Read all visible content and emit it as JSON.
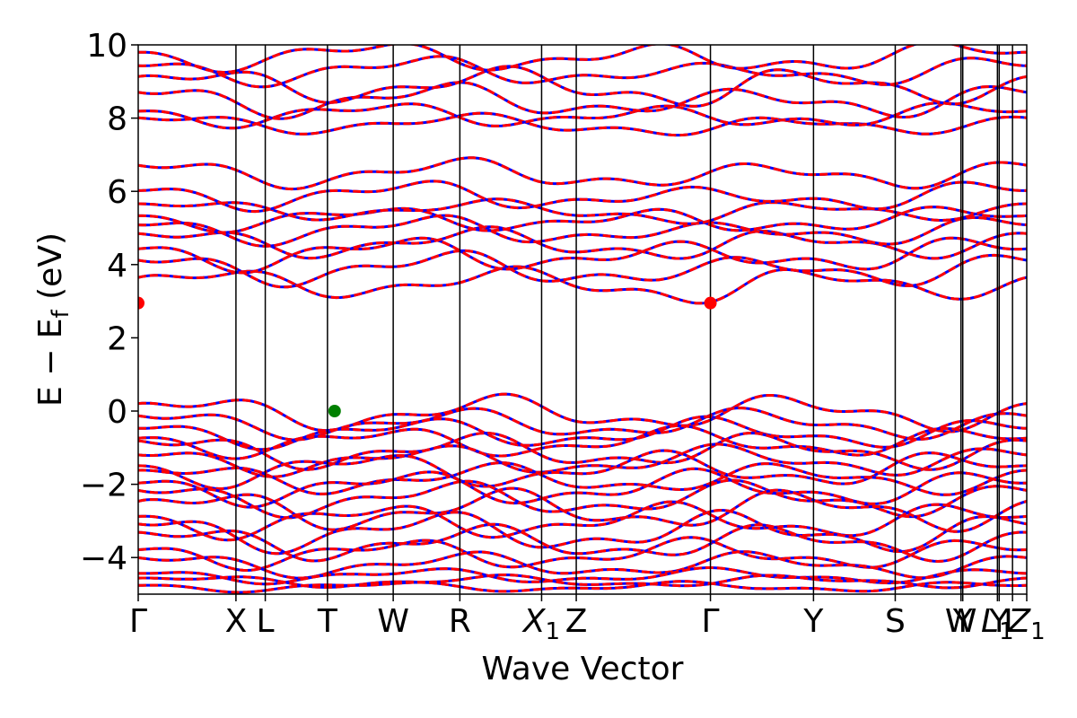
{
  "chart_data": {
    "type": "line",
    "title": "",
    "xlabel": "Wave Vector",
    "ylabel": "E − E_f (eV)",
    "ylabel_parts": {
      "main": "E − E",
      "sub": "f",
      "unit": " (eV)"
    },
    "ylim": [
      -5,
      10
    ],
    "yticks": [
      -4,
      -2,
      0,
      2,
      4,
      6,
      8,
      10
    ],
    "ytick_labels": [
      "−4",
      "−2",
      "0",
      "2",
      "4",
      "6",
      "8",
      "10"
    ],
    "xlim": [
      0,
      1
    ],
    "kpoints": [
      {
        "label": "Γ",
        "x": 0.0
      },
      {
        "label": "X",
        "x": 0.11
      },
      {
        "label": "L",
        "x": 0.143
      },
      {
        "label": "T",
        "x": 0.213
      },
      {
        "label": "W",
        "x": 0.287
      },
      {
        "label": "R",
        "x": 0.362
      },
      {
        "label": "X",
        "sub": "1",
        "x": 0.454
      },
      {
        "label": "Z",
        "x": 0.493
      },
      {
        "label": "Γ",
        "x": 0.644
      },
      {
        "label": "Y",
        "x": 0.76
      },
      {
        "label": "S",
        "x": 0.852
      },
      {
        "label": "W",
        "x": 0.926
      },
      {
        "label": "Y",
        "x": 0.928
      },
      {
        "label": "L",
        "sub": "1",
        "x": 0.967
      },
      {
        "label": "Y",
        "x": 0.969
      },
      {
        "label": "L",
        "x": 0.984
      },
      {
        "label": "Z",
        "sub": "1",
        "x": 1.0
      }
    ],
    "series": [
      {
        "color": "#0000ff",
        "style": "solid"
      },
      {
        "color": "#ff0000",
        "style": "dashed"
      }
    ],
    "band_edges": [
      {
        "kind": "cbm",
        "x": 0.0,
        "energy": 2.95,
        "color": "#ff0000"
      },
      {
        "kind": "cbm",
        "x": 0.644,
        "energy": 2.95,
        "color": "#ff0000"
      },
      {
        "kind": "vbm",
        "x": 0.221,
        "energy": 0.0,
        "color": "#008000"
      }
    ],
    "bands": [
      {
        "kind": "v",
        "base": -0.05,
        "amp": 0.35,
        "phase": 0.3
      },
      {
        "kind": "v",
        "base": -0.35,
        "amp": 0.3,
        "phase": 1.1
      },
      {
        "kind": "v",
        "base": -0.6,
        "amp": 0.3,
        "phase": 2.0
      },
      {
        "kind": "v",
        "base": -0.85,
        "amp": 0.3,
        "phase": 2.7
      },
      {
        "kind": "v",
        "base": -1.1,
        "amp": 0.35,
        "phase": 0.8
      },
      {
        "kind": "v",
        "base": -1.35,
        "amp": 0.3,
        "phase": 1.7
      },
      {
        "kind": "v",
        "base": -1.6,
        "amp": 0.35,
        "phase": 3.1
      },
      {
        "kind": "v",
        "base": -1.85,
        "amp": 0.3,
        "phase": 0.4
      },
      {
        "kind": "v",
        "base": -2.1,
        "amp": 0.35,
        "phase": 2.3
      },
      {
        "kind": "v",
        "base": -2.4,
        "amp": 0.35,
        "phase": 1.3
      },
      {
        "kind": "v",
        "base": -2.7,
        "amp": 0.4,
        "phase": 0.1
      },
      {
        "kind": "v",
        "base": -3.0,
        "amp": 0.35,
        "phase": 2.9
      },
      {
        "kind": "v",
        "base": -3.3,
        "amp": 0.4,
        "phase": 1.6
      },
      {
        "kind": "v",
        "base": -3.6,
        "amp": 0.35,
        "phase": 0.6
      },
      {
        "kind": "v",
        "base": -3.9,
        "amp": 0.3,
        "phase": 2.4
      },
      {
        "kind": "v",
        "base": -4.2,
        "amp": 0.25,
        "phase": 1.0
      },
      {
        "kind": "v",
        "base": -4.5,
        "amp": 0.15,
        "phase": 1.9
      },
      {
        "kind": "v",
        "base": -4.65,
        "amp": 0.12,
        "phase": 0.3
      },
      {
        "kind": "v",
        "base": -4.8,
        "amp": 0.1,
        "phase": 2.6
      },
      {
        "kind": "c",
        "base": 3.5,
        "amp": 0.3,
        "phase": 0.0
      },
      {
        "kind": "c",
        "base": 3.9,
        "amp": 0.35,
        "phase": 1.4
      },
      {
        "kind": "c",
        "base": 4.3,
        "amp": 0.35,
        "phase": 2.5
      },
      {
        "kind": "c",
        "base": 4.6,
        "amp": 0.3,
        "phase": 0.7
      },
      {
        "kind": "c",
        "base": 4.95,
        "amp": 0.3,
        "phase": 1.9
      },
      {
        "kind": "c",
        "base": 5.25,
        "amp": 0.25,
        "phase": 3.0
      },
      {
        "kind": "c",
        "base": 5.5,
        "amp": 0.2,
        "phase": 0.5
      },
      {
        "kind": "c",
        "base": 5.9,
        "amp": 0.3,
        "phase": 2.2
      },
      {
        "kind": "c",
        "base": 6.5,
        "amp": 0.3,
        "phase": 1.2
      },
      {
        "kind": "c",
        "base": 7.85,
        "amp": 0.2,
        "phase": 0.9
      },
      {
        "kind": "c",
        "base": 8.1,
        "amp": 0.25,
        "phase": 2.8
      },
      {
        "kind": "c",
        "base": 8.5,
        "amp": 0.35,
        "phase": 1.5
      },
      {
        "kind": "c",
        "base": 8.9,
        "amp": 0.35,
        "phase": 0.2
      },
      {
        "kind": "c",
        "base": 9.3,
        "amp": 0.3,
        "phase": 2.0
      },
      {
        "kind": "c",
        "base": 9.7,
        "amp": 0.3,
        "phase": 3.0
      }
    ]
  }
}
